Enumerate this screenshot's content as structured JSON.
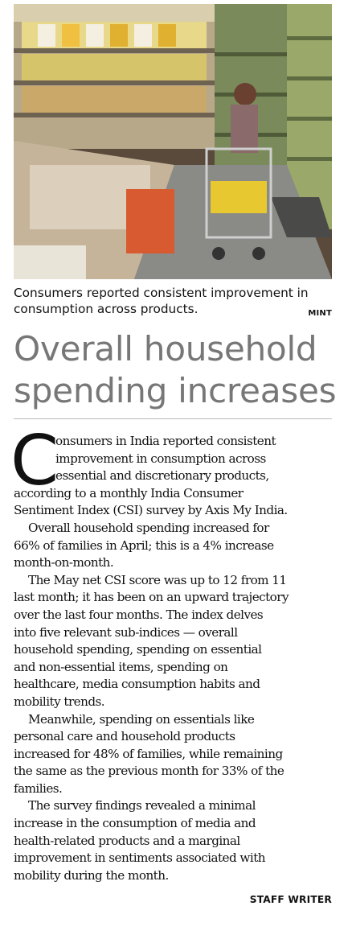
{
  "photo": {
    "description_icon": "supermarket-aisle-photo"
  },
  "caption": {
    "line1": "Consumers reported consistent improvement in",
    "line2": "consumption across products.",
    "credit": "MINT"
  },
  "headline": {
    "line1": "Overall household",
    "line2": "spending increases"
  },
  "article": {
    "dropcap": "C",
    "p1": [
      "onsumers in India reported consistent",
      "improvement in consumption across",
      "essential and discretionary products,",
      "according to a monthly India Consumer",
      "Sentiment Index (CSI) survey by Axis My India."
    ],
    "p2": [
      "Overall household spending increased for",
      "66% of families in April; this is a 4% increase",
      "month-on-month."
    ],
    "p3": [
      "The May net CSI score was up to 12 from 11",
      "last month; it has been on an upward trajectory",
      "over the last four months. The index delves",
      "into five relevant sub-indices — overall",
      "household spending, spending on essential",
      "and non-essential items, spending on",
      "healthcare, media consumption habits and",
      "mobility trends."
    ],
    "p4": [
      "Meanwhile, spending on essentials like",
      "personal care and household products",
      "increased for 48% of families, while remaining",
      "the same as the previous month for 33% of the",
      "families."
    ],
    "p5": [
      "The survey findings revealed a minimal",
      "increase in the consumption of media and",
      "health-related products and a marginal",
      "improvement in sentiments associated with",
      "mobility during the month."
    ],
    "byline": "STAFF WRITER"
  }
}
